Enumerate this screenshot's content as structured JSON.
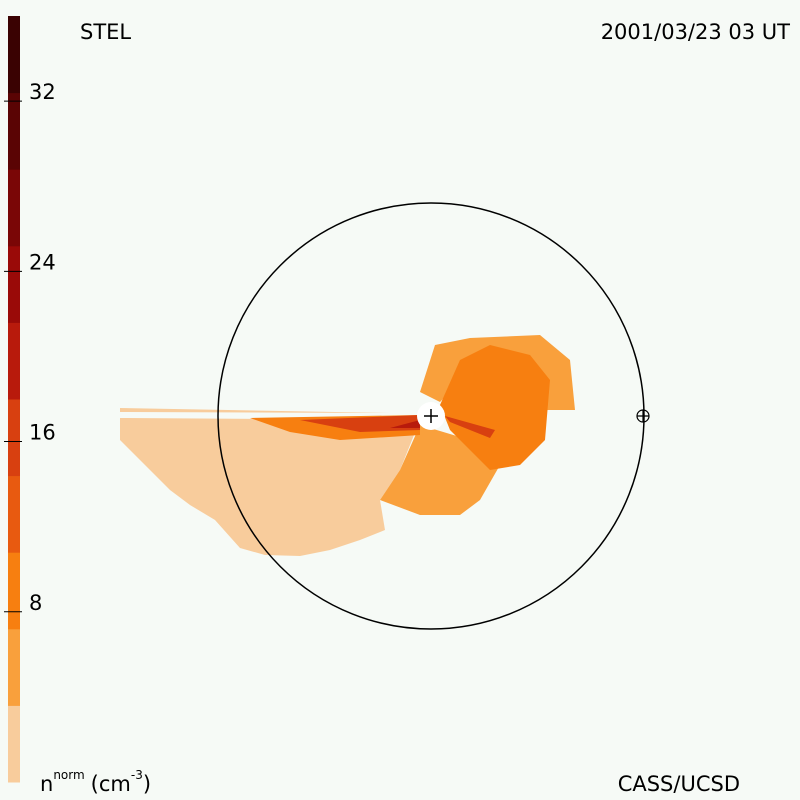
{
  "header": {
    "left": "STEL",
    "right": "2001/03/23 03 UT"
  },
  "colorbar": {
    "range": [
      0,
      36
    ],
    "ticks": [
      8,
      16,
      24,
      32
    ]
  },
  "footer": {
    "unit_symbol": "n",
    "unit_superscript": "norm",
    "unit_open": "(cm",
    "unit_exponent": "-3",
    "unit_close": ")",
    "credit": "CASS/UCSD"
  }
}
